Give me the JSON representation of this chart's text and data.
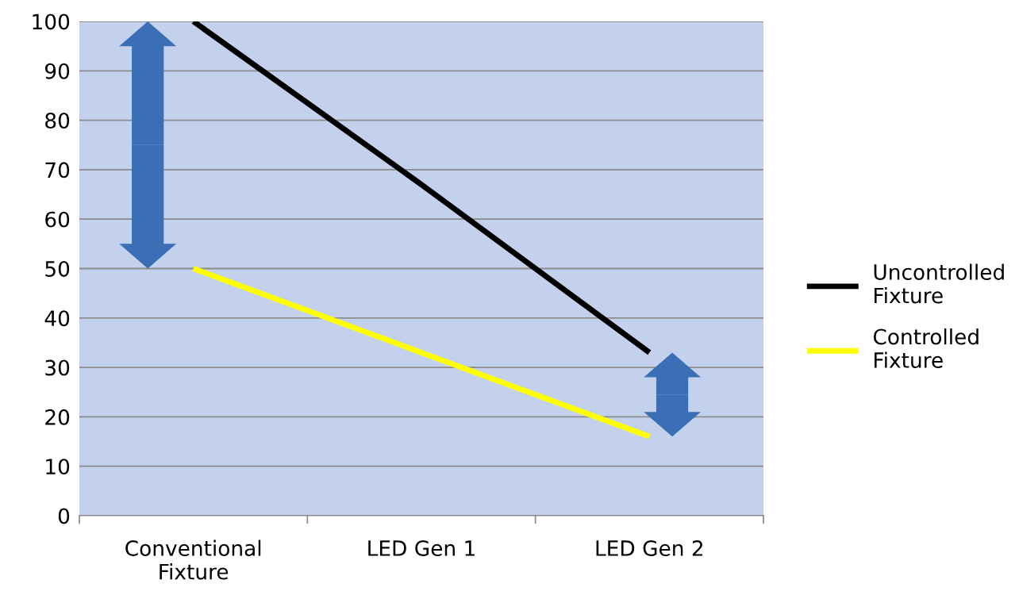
{
  "chart_data": {
    "type": "line",
    "categories": [
      "Conventional Fixture",
      "LED Gen 1",
      "LED Gen 2"
    ],
    "series": [
      {
        "name": "Uncontrolled Fixture",
        "color": "#000000",
        "values": [
          100,
          67,
          33
        ]
      },
      {
        "name": "Controlled Fixture",
        "color": "#ffff00",
        "values": [
          50,
          33,
          16
        ]
      }
    ],
    "ylim": [
      0,
      100
    ],
    "yticks": [
      0,
      10,
      20,
      30,
      40,
      50,
      60,
      70,
      80,
      90,
      100
    ],
    "grid": "y",
    "legend": "right",
    "marker": "none",
    "line_style": "solid"
  }
}
